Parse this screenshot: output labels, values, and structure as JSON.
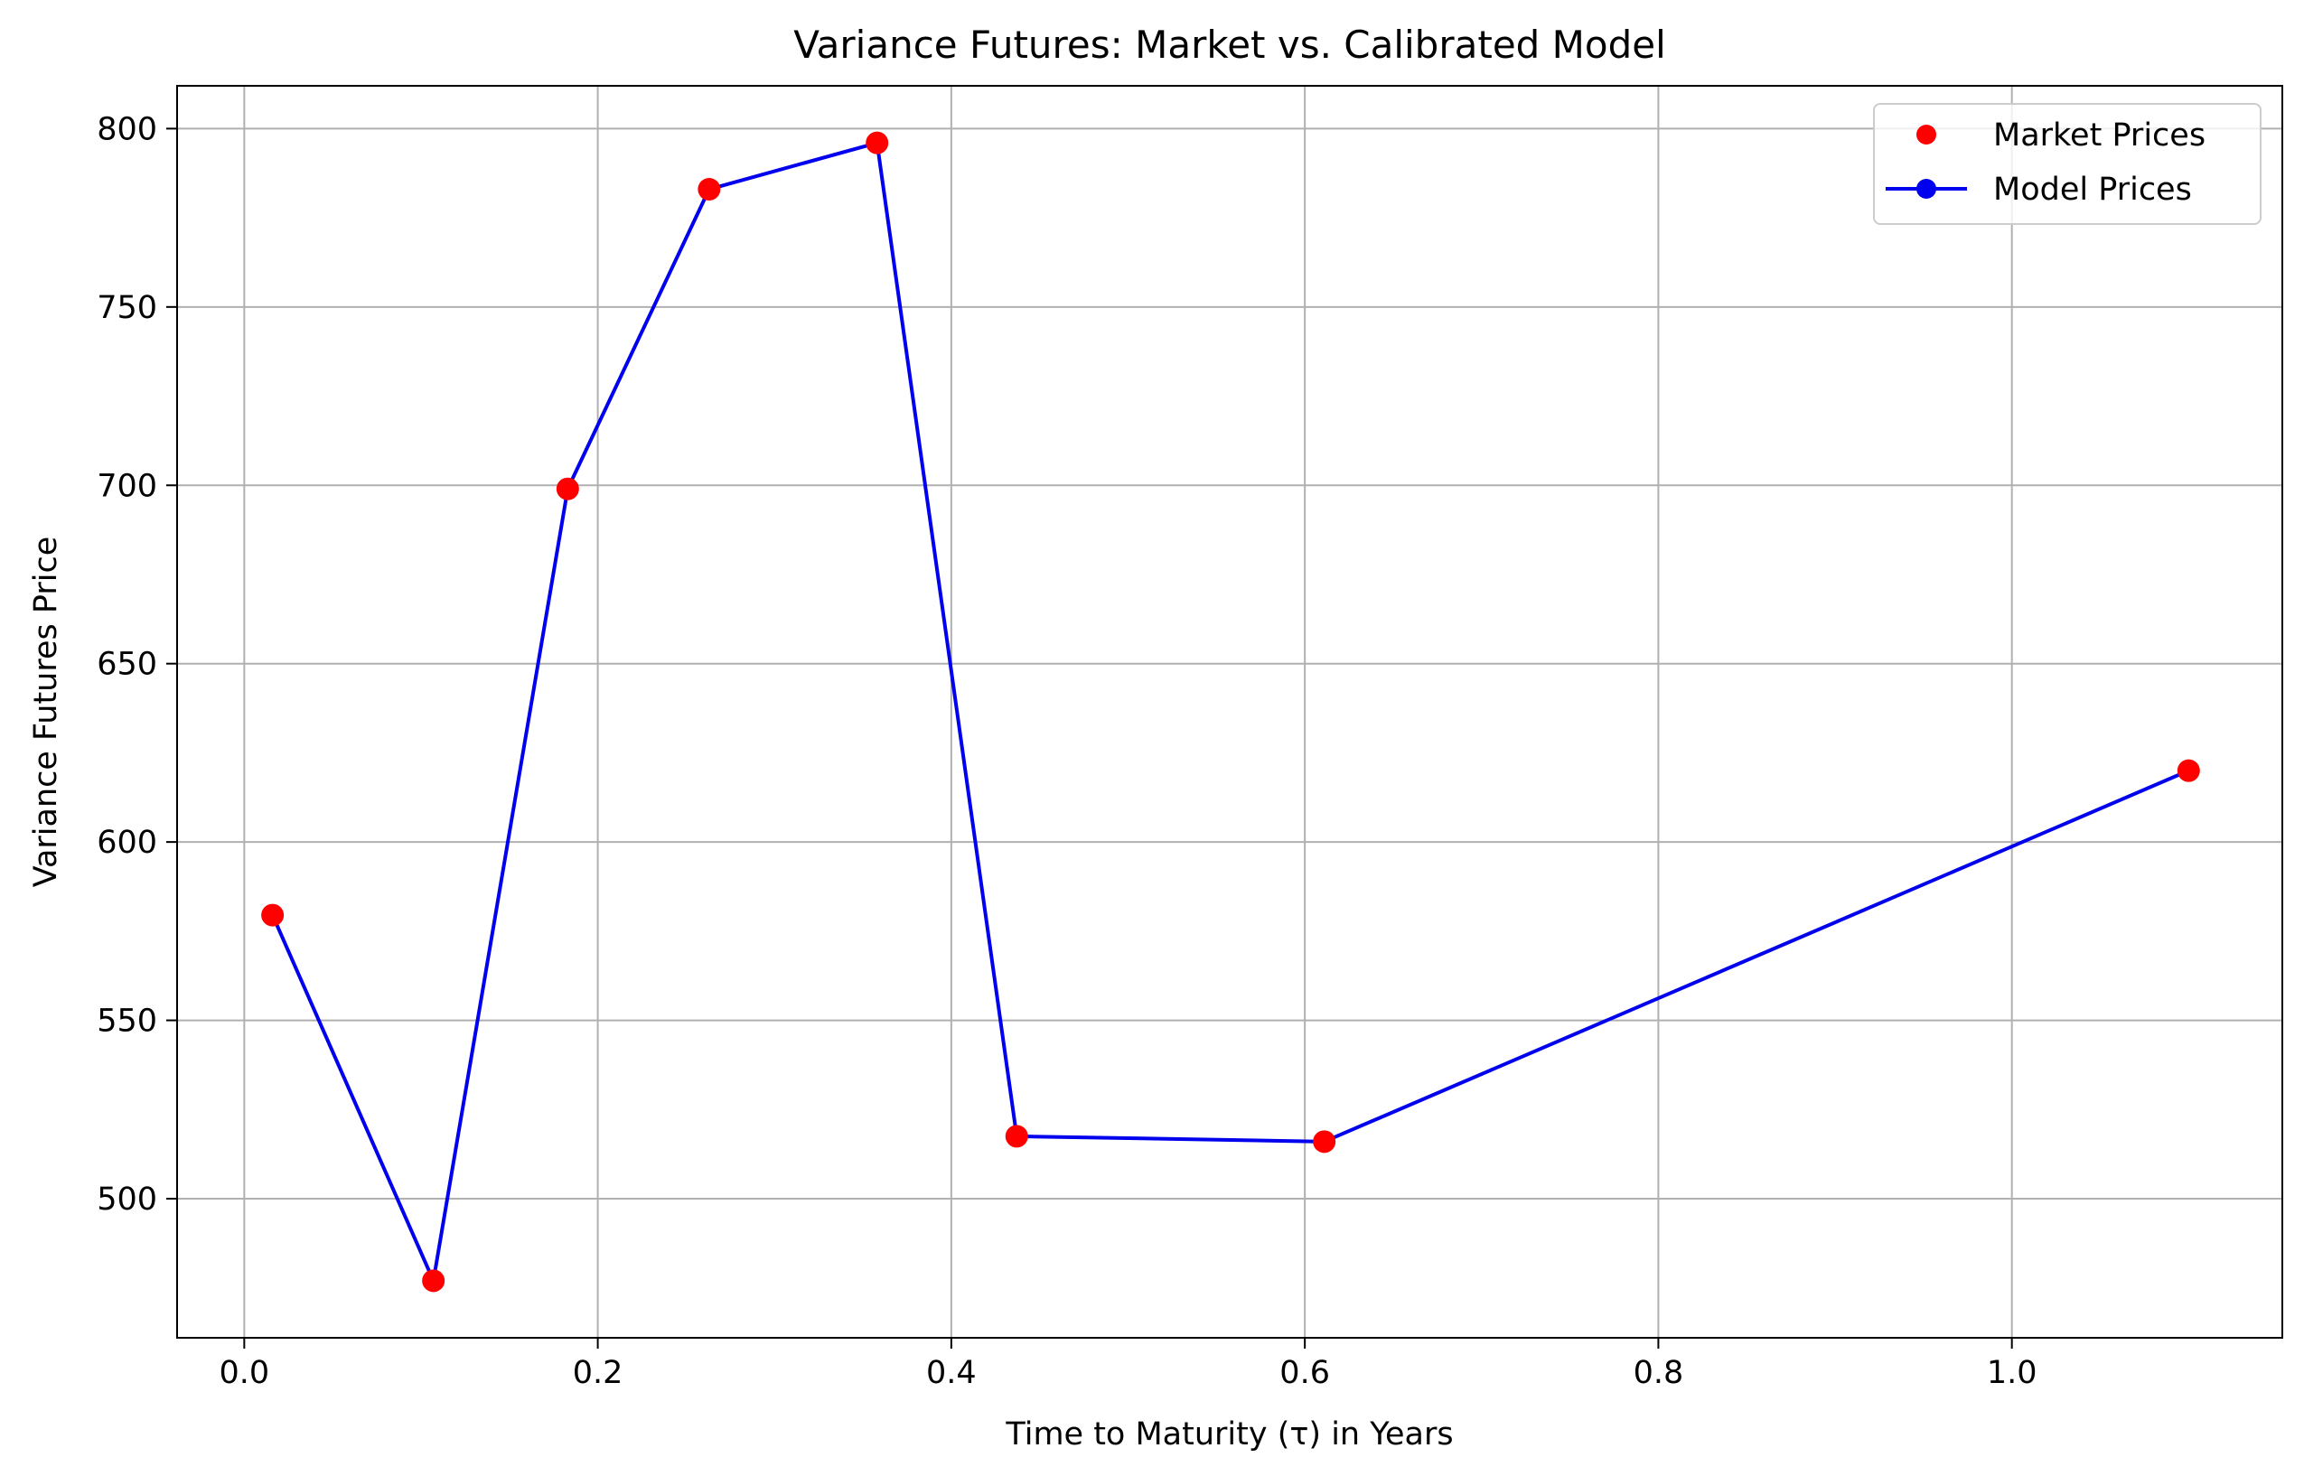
{
  "chart_data": {
    "type": "line",
    "title": "Variance Futures: Market vs. Calibrated Model",
    "xlabel": "Time to Maturity (τ) in Years",
    "ylabel": "Variance Futures Price",
    "xlim": [
      -0.038,
      1.153
    ],
    "ylim": [
      461,
      812
    ],
    "xticks": [
      0.0,
      0.2,
      0.4,
      0.6,
      0.8,
      1.0
    ],
    "xtick_labels": [
      "0.0",
      "0.2",
      "0.4",
      "0.6",
      "0.8",
      "1.0"
    ],
    "yticks": [
      500,
      550,
      600,
      650,
      700,
      750,
      800
    ],
    "ytick_labels": [
      "500",
      "550",
      "600",
      "650",
      "700",
      "750",
      "800"
    ],
    "grid": true,
    "legend_position": "top-right",
    "series": [
      {
        "name": "Market Prices",
        "style": "markers",
        "color": "#ff0000",
        "x": [
          0.016,
          0.107,
          0.183,
          0.263,
          0.358,
          0.437,
          0.611,
          1.1
        ],
        "y": [
          579.5,
          477,
          699,
          783,
          796,
          517.5,
          516,
          620
        ]
      },
      {
        "name": "Model Prices",
        "style": "line",
        "color": "#0000ee",
        "x": [
          0.016,
          0.107,
          0.183,
          0.263,
          0.358,
          0.437,
          0.611,
          1.1
        ],
        "y": [
          579.5,
          477,
          699,
          783,
          796,
          517.5,
          516,
          620
        ]
      }
    ]
  }
}
